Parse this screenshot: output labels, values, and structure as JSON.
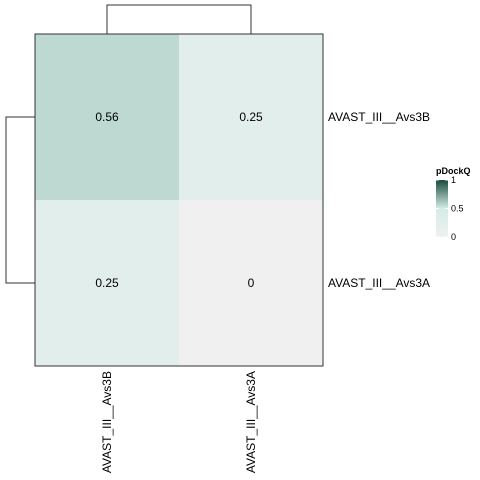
{
  "chart_data": {
    "type": "heatmap",
    "rows": [
      "AVAST_III__Avs3B",
      "AVAST_III__Avs3A"
    ],
    "columns": [
      "AVAST_III__Avs3B",
      "AVAST_III__Avs3A"
    ],
    "values": [
      [
        0.56,
        0.25
      ],
      [
        0.25,
        0
      ]
    ],
    "cell_labels": [
      [
        "0.56",
        "0.25"
      ],
      [
        "0.25",
        "0"
      ]
    ],
    "legend": {
      "title": "pDockQ",
      "range": [
        0,
        1
      ],
      "ticks": [
        "1",
        "0.5",
        "0"
      ],
      "tick_values": [
        1,
        0.5,
        0
      ],
      "colors": {
        "low": "#f0f0f0",
        "mid": "#d4ece6",
        "high": "#1c4a3c"
      }
    },
    "border_color": "#333333",
    "dendrograms": {
      "rows": true,
      "columns": true
    }
  }
}
